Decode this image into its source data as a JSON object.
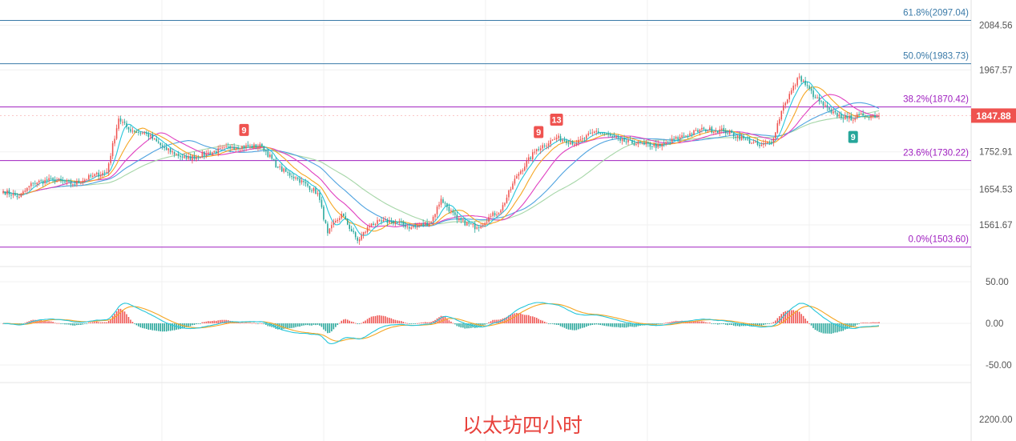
{
  "caption": "以太坊四小时",
  "colors": {
    "up": "#ef5350",
    "down": "#26a69a",
    "fib_blue": "#3a7aa8",
    "fib_purple": "#a020c0",
    "ma_fast": "#26c6da",
    "ma_mid": "#f5a623",
    "ma_slow": "#e040c0",
    "ma_slower": "#4fa3e0",
    "ma_slowest": "#a5d6a7",
    "macd_dif": "#26c6da",
    "macd_dea": "#f5a623",
    "price_tag": "#ef5350"
  },
  "chart_data": [
    {
      "type": "candlestick",
      "title": "",
      "y_ticks": [
        "2084.56",
        "1967.57",
        "1752.91",
        "1654.53",
        "1561.67"
      ],
      "current_price": "1847.88",
      "fib_levels": [
        {
          "label": "61.8%(2097.04)",
          "value": 2097.04,
          "color": "blue"
        },
        {
          "label": "50.0%(1983.73)",
          "value": 1983.73,
          "color": "blue"
        },
        {
          "label": "38.2%(1870.42)",
          "value": 1870.42,
          "color": "purple"
        },
        {
          "label": "23.6%(1730.22)",
          "value": 1730.22,
          "color": "purple"
        },
        {
          "label": "0.0%(1503.60)",
          "value": 1503.6,
          "color": "purple"
        }
      ],
      "close_waypoints": [
        [
          0,
          1650
        ],
        [
          8,
          1635
        ],
        [
          15,
          1672
        ],
        [
          25,
          1680
        ],
        [
          35,
          1668
        ],
        [
          45,
          1690
        ],
        [
          52,
          1700
        ],
        [
          58,
          1840
        ],
        [
          63,
          1812
        ],
        [
          72,
          1800
        ],
        [
          82,
          1758
        ],
        [
          92,
          1735
        ],
        [
          102,
          1748
        ],
        [
          115,
          1766
        ],
        [
          130,
          1768
        ],
        [
          138,
          1712
        ],
        [
          148,
          1682
        ],
        [
          158,
          1645
        ],
        [
          163,
          1540
        ],
        [
          170,
          1590
        ],
        [
          178,
          1520
        ],
        [
          185,
          1565
        ],
        [
          195,
          1572
        ],
        [
          205,
          1555
        ],
        [
          215,
          1570
        ],
        [
          220,
          1630
        ],
        [
          228,
          1575
        ],
        [
          238,
          1555
        ],
        [
          245,
          1585
        ],
        [
          250,
          1600
        ],
        [
          258,
          1690
        ],
        [
          268,
          1760
        ],
        [
          278,
          1790
        ],
        [
          288,
          1775
        ],
        [
          298,
          1808
        ],
        [
          310,
          1782
        ],
        [
          322,
          1772
        ],
        [
          330,
          1768
        ],
        [
          340,
          1792
        ],
        [
          352,
          1812
        ],
        [
          362,
          1808
        ],
        [
          372,
          1788
        ],
        [
          380,
          1768
        ],
        [
          386,
          1778
        ],
        [
          392,
          1875
        ],
        [
          400,
          1950
        ],
        [
          408,
          1895
        ],
        [
          416,
          1855
        ],
        [
          424,
          1840
        ],
        [
          432,
          1848
        ],
        [
          440,
          1847.88
        ]
      ],
      "badges": [
        {
          "text": "9",
          "index": 121,
          "position": "above",
          "color": "red"
        },
        {
          "text": "9",
          "index": 269,
          "position": "above",
          "color": "red"
        },
        {
          "text": "13",
          "index": 278,
          "position": "above",
          "color": "red"
        },
        {
          "text": "9",
          "index": 427,
          "position": "below",
          "color": "green"
        }
      ]
    },
    {
      "type": "histogram",
      "title": "",
      "series": [
        {
          "name": ""
        },
        {
          "name": ""
        },
        {
          "name": ""
        }
      ],
      "y_ticks": [
        "50.00",
        "0.00",
        "-50.00"
      ],
      "ylim": [
        -75,
        75
      ]
    },
    {
      "type": "volume-axis",
      "y_ticks": [
        "2200.00"
      ]
    }
  ]
}
